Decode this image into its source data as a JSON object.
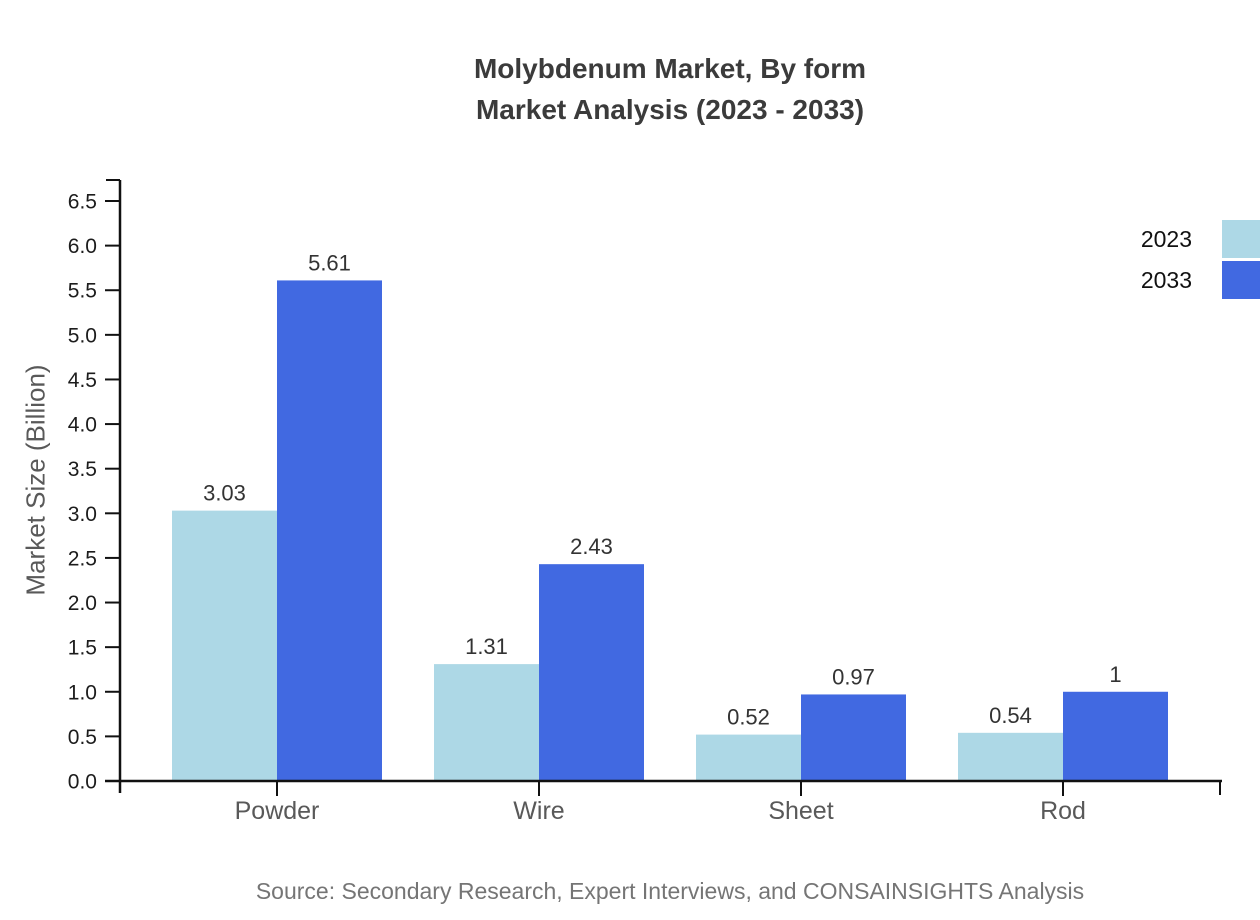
{
  "title": {
    "line1": "Molybdenum Market, By form",
    "line2": "Market Analysis (2023 - 2033)"
  },
  "source_note": "Source: Secondary Research, Expert Interviews, and CONSAINSIGHTS Analysis",
  "chart_data": {
    "type": "bar",
    "title": "Molybdenum Market, By form Market Analysis (2023 - 2033)",
    "categories": [
      "Powder",
      "Wire",
      "Sheet",
      "Rod"
    ],
    "series": [
      {
        "name": "2023",
        "color": "#ADD8E6",
        "values": [
          3.03,
          1.31,
          0.52,
          0.54
        ],
        "labels": [
          "3.03",
          "1.31",
          "0.52",
          "0.54"
        ]
      },
      {
        "name": "2033",
        "color": "#4169E1",
        "values": [
          5.61,
          2.43,
          0.97,
          1
        ],
        "labels": [
          "5.61",
          "2.43",
          "0.97",
          "1"
        ]
      }
    ],
    "xlabel": "",
    "ylabel": "Market Size (Billion)",
    "ylim": [
      0,
      6.5
    ],
    "ytick_step": 0.5,
    "ytick_labels": [
      "0.0",
      "0.5",
      "1.0",
      "1.5",
      "2.0",
      "2.5",
      "3.0",
      "3.5",
      "4.0",
      "4.5",
      "5.0",
      "5.5",
      "6.0",
      "6.5"
    ],
    "grid": false,
    "legend_position": "upper-right"
  },
  "colors": {
    "background": "#ffffff",
    "series_2023": "#ADD8E6",
    "series_2033": "#4169E1",
    "title": "#3b3b3b",
    "axis": "#111111",
    "ytick_label": "#1c1c1c",
    "value_label": "#333333",
    "category_label": "#595959",
    "ylabel": "#595959",
    "legend_text": "#111111",
    "source": "#757575"
  }
}
